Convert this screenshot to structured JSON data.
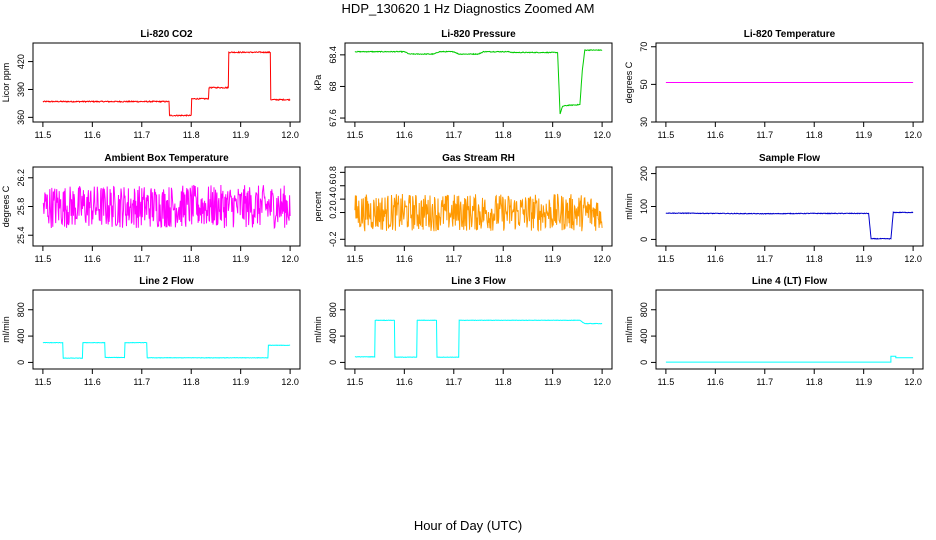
{
  "title": "HDP_130620  1 Hz Diagnostics Zoomed AM",
  "x_caption": "Hour of Day (UTC)",
  "chart_data": [
    {
      "type": "line",
      "title": "Li-820 CO2",
      "ylabel": "Licor ppm",
      "xlim": [
        11.48,
        12.02
      ],
      "ylim": [
        355,
        440
      ],
      "yticks": [
        360,
        390,
        420
      ],
      "xticks": [
        11.5,
        11.6,
        11.7,
        11.8,
        11.9,
        12.0
      ],
      "color": "#ff0000",
      "noise": 0.6,
      "x": [
        11.5,
        11.755,
        11.755,
        11.8,
        11.8,
        11.835,
        11.835,
        11.875,
        11.875,
        11.96,
        11.96,
        12.0
      ],
      "y": [
        377,
        377,
        362,
        362,
        380,
        380,
        392,
        392,
        430,
        430,
        379,
        379
      ]
    },
    {
      "type": "line",
      "title": "Li-820 Pressure",
      "ylabel": "kPa",
      "xlim": [
        11.48,
        12.02
      ],
      "ylim": [
        67.55,
        68.55
      ],
      "yticks": [
        67.6,
        68.0,
        68.4
      ],
      "xticks": [
        11.5,
        11.6,
        11.7,
        11.8,
        11.9,
        12.0
      ],
      "color": "#00cc00",
      "noise": 0.005,
      "x": [
        11.5,
        11.6,
        11.61,
        11.66,
        11.67,
        11.7,
        11.71,
        11.75,
        11.76,
        11.81,
        11.82,
        11.91,
        11.915,
        11.92,
        11.93,
        11.955,
        11.96,
        11.965,
        12.0
      ],
      "y": [
        68.44,
        68.44,
        68.41,
        68.41,
        68.44,
        68.44,
        68.41,
        68.41,
        68.44,
        68.44,
        68.43,
        68.43,
        67.65,
        67.75,
        67.76,
        67.77,
        68.2,
        68.46,
        68.46
      ]
    },
    {
      "type": "line",
      "title": "Li-820 Temperature",
      "ylabel": "degrees C",
      "xlim": [
        11.48,
        12.02
      ],
      "ylim": [
        30,
        72
      ],
      "yticks": [
        30,
        50,
        70
      ],
      "xticks": [
        11.5,
        11.6,
        11.7,
        11.8,
        11.9,
        12.0
      ],
      "color": "#ff00ff",
      "noise": 0,
      "x": [
        11.5,
        12.0
      ],
      "y": [
        51,
        51
      ]
    },
    {
      "type": "line",
      "title": "Ambient Box Temperature",
      "ylabel": "degrees C",
      "xlim": [
        11.48,
        12.02
      ],
      "ylim": [
        25.25,
        26.35
      ],
      "yticks": [
        25.4,
        25.8,
        26.2
      ],
      "xticks": [
        11.5,
        11.6,
        11.7,
        11.8,
        11.9,
        12.0
      ],
      "color": "#ff00ff",
      "noise": 0.3,
      "x": [
        11.5,
        12.0
      ],
      "y": [
        25.8,
        25.8
      ]
    },
    {
      "type": "line",
      "title": "Gas Stream RH",
      "ylabel": "percent",
      "xlim": [
        11.48,
        12.02
      ],
      "ylim": [
        -0.3,
        0.88
      ],
      "yticks": [
        -0.2,
        0.2,
        0.4,
        0.6,
        0.8
      ],
      "xticks": [
        11.5,
        11.6,
        11.7,
        11.8,
        11.9,
        12.0
      ],
      "color": "#ff9900",
      "noise": 0.28,
      "x": [
        11.5,
        12.0
      ],
      "y": [
        0.2,
        0.2
      ]
    },
    {
      "type": "line",
      "title": "Sample Flow",
      "ylabel": "ml/min",
      "xlim": [
        11.48,
        12.02
      ],
      "ylim": [
        -20,
        220
      ],
      "yticks": [
        0,
        100,
        200
      ],
      "xticks": [
        11.5,
        11.6,
        11.7,
        11.8,
        11.9,
        12.0
      ],
      "color": "#0000cc",
      "noise": 1,
      "x": [
        11.5,
        11.6,
        11.7,
        11.8,
        11.91,
        11.915,
        11.955,
        11.96,
        12.0
      ],
      "y": [
        80,
        79,
        78,
        79,
        79,
        2,
        2,
        82,
        82
      ]
    },
    {
      "type": "line",
      "title": "Line 2 Flow",
      "ylabel": "ml/min",
      "xlim": [
        11.48,
        12.02
      ],
      "ylim": [
        -100,
        1100
      ],
      "yticks": [
        0,
        400,
        800
      ],
      "xticks": [
        11.5,
        11.6,
        11.7,
        11.8,
        11.9,
        12.0
      ],
      "color": "#00ffff",
      "noise": 3,
      "x": [
        11.5,
        11.54,
        11.54,
        11.58,
        11.58,
        11.625,
        11.625,
        11.665,
        11.665,
        11.71,
        11.71,
        11.955,
        11.955,
        12.0
      ],
      "y": [
        300,
        300,
        65,
        65,
        300,
        300,
        75,
        75,
        300,
        300,
        70,
        70,
        260,
        260
      ]
    },
    {
      "type": "line",
      "title": "Line 3 Flow",
      "ylabel": "ml/min",
      "xlim": [
        11.48,
        12.02
      ],
      "ylim": [
        -100,
        1100
      ],
      "yticks": [
        0,
        400,
        800
      ],
      "xticks": [
        11.5,
        11.6,
        11.7,
        11.8,
        11.9,
        12.0
      ],
      "color": "#00ffff",
      "noise": 3,
      "x": [
        11.5,
        11.54,
        11.54,
        11.58,
        11.58,
        11.625,
        11.625,
        11.665,
        11.665,
        11.71,
        11.71,
        11.955,
        11.965,
        12.0
      ],
      "y": [
        85,
        85,
        640,
        640,
        80,
        80,
        640,
        640,
        80,
        80,
        640,
        640,
        590,
        590
      ]
    },
    {
      "type": "line",
      "title": "Line 4 (LT) Flow",
      "ylabel": "ml/min",
      "xlim": [
        11.48,
        12.02
      ],
      "ylim": [
        -100,
        1100
      ],
      "yticks": [
        0,
        400,
        800
      ],
      "xticks": [
        11.5,
        11.6,
        11.7,
        11.8,
        11.9,
        12.0
      ],
      "color": "#00ffff",
      "noise": 0,
      "x": [
        11.5,
        11.955,
        11.955,
        11.965,
        11.965,
        12.0
      ],
      "y": [
        5,
        5,
        95,
        95,
        70,
        70
      ]
    }
  ]
}
